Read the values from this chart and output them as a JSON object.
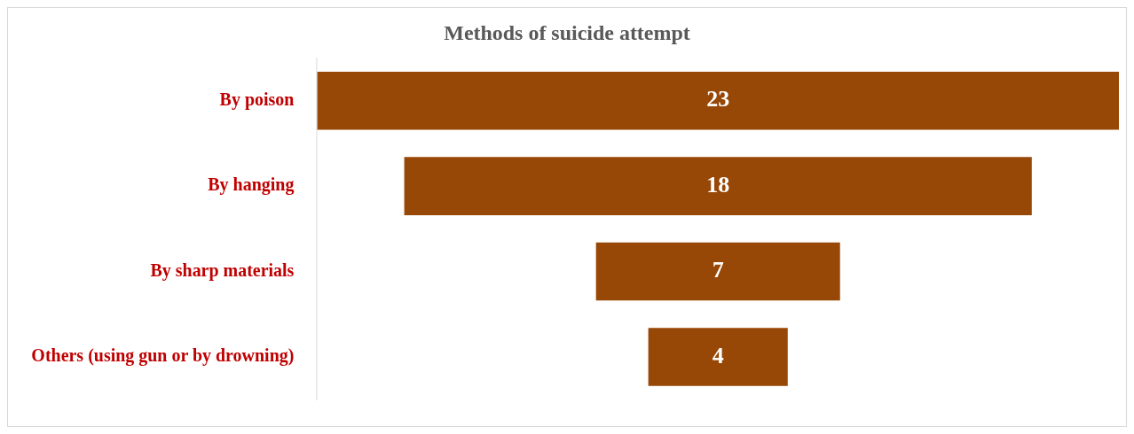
{
  "chart_data": {
    "type": "other",
    "title": "Methods of suicide attempt",
    "categories": [
      "By poison",
      "By hanging",
      "By sharp materials",
      "Others (using gun or by drowning)"
    ],
    "values": [
      23,
      18,
      7,
      4
    ],
    "color": "#974706",
    "data_labels": true
  }
}
